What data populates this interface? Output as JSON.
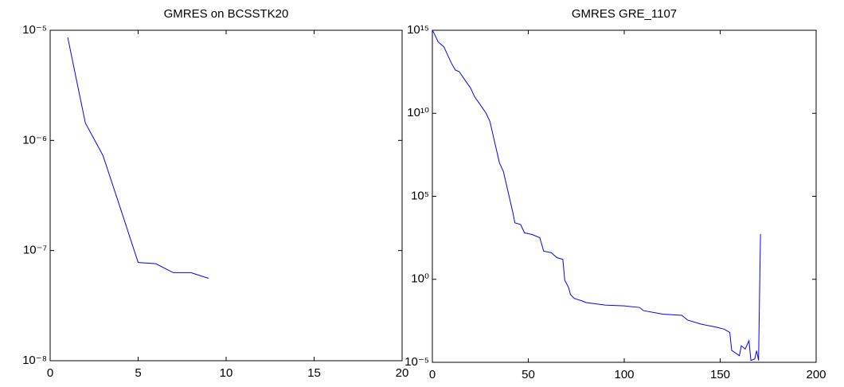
{
  "chart_data": [
    {
      "type": "line",
      "title": "GMRES on BCSSTK20",
      "log_y": true,
      "color": "#0000ff",
      "x": [
        1,
        2,
        3,
        4,
        5,
        6,
        7,
        8,
        9
      ],
      "values": [
        8.6e-06,
        1.44e-06,
        7.3e-07,
        2.4e-07,
        7.8e-08,
        7.6e-08,
        6.3e-08,
        6.3e-08,
        5.6e-08
      ],
      "xlim": [
        0,
        20
      ],
      "xticks": [
        0,
        5,
        10,
        15,
        20
      ],
      "ylim": [
        1e-08,
        1e-05
      ],
      "yticks": [
        {
          "value": 1e-08,
          "label": "10⁻⁸"
        },
        {
          "value": 1e-07,
          "label": "10⁻⁷"
        },
        {
          "value": 1e-06,
          "label": "10⁻⁶"
        },
        {
          "value": 1e-05,
          "label": "10⁻⁵"
        }
      ]
    },
    {
      "type": "line",
      "title": "GMRES GRE_1107",
      "log_y": true,
      "color": "#0000ff",
      "x": [
        0,
        1,
        3,
        6,
        8,
        10,
        12,
        14,
        17,
        20,
        22,
        25,
        28,
        30,
        31,
        33,
        35,
        37,
        38,
        40,
        42,
        43,
        46,
        48,
        52,
        56,
        58,
        62,
        64,
        65,
        68,
        69,
        71,
        72,
        74,
        78,
        80,
        90,
        100,
        108,
        110,
        120,
        130,
        133,
        140,
        148,
        152,
        155,
        156,
        160,
        161,
        163,
        165,
        166,
        168,
        169,
        170,
        171
      ],
      "values": [
        1000000000000000.0,
        630000000000000.0,
        200000000000000.0,
        100000000000000.0,
        32000000000000.0,
        10000000000000.0,
        4000000000000.0,
        3200000000000.0,
        1000000000000.0,
        320000000000.0,
        100000000000.0,
        32000000000.0,
        10000000000.0,
        3200000000.0,
        1000000000.0,
        100000000.0,
        10000000.0,
        3200000.0,
        1000000.0,
        100000.0,
        10000.0,
        2500.0,
        2000.0,
        630,
        500,
        320,
        50,
        40,
        25,
        20,
        16,
        0.87,
        0.32,
        0.12,
        0.07,
        0.05,
        0.04,
        0.028,
        0.025,
        0.02,
        0.013,
        0.008,
        0.0068,
        0.0035,
        0.002,
        0.0013,
        0.001,
        0.00063,
        5.2e-05,
        2.5e-05,
        0.0001,
        6.3e-05,
        0.0002,
        1.3e-05,
        1.6e-05,
        5e-05,
        1.3e-05,
        525
      ],
      "xlim": [
        0,
        200
      ],
      "xticks": [
        0,
        50,
        100,
        150,
        200
      ],
      "ylim": [
        1e-05,
        1000000000000000.0
      ],
      "yticks": [
        {
          "value": 1e-05,
          "label": "10⁻⁵"
        },
        {
          "value": 1,
          "label": "10⁰"
        },
        {
          "value": 100000.0,
          "label": "10⁵"
        },
        {
          "value": 10000000000.0,
          "label": "10¹⁰"
        },
        {
          "value": 1000000000000000.0,
          "label": "10¹⁵"
        }
      ]
    }
  ]
}
